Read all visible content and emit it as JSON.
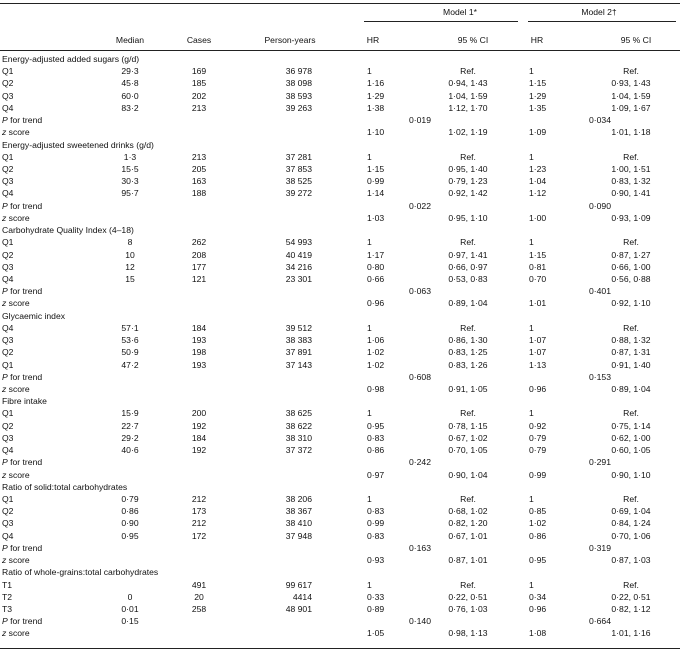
{
  "header": {
    "model1": "Model 1*",
    "model2": "Model 2†",
    "median": "Median",
    "cases": "Cases",
    "person_years": "Person-years",
    "hr1": "HR",
    "ci1": "95 % CI",
    "hr2": "HR",
    "ci2": "95 % CI"
  },
  "rows": [
    {
      "type": "section",
      "label": "Energy-adjusted added sugars (g/d)"
    },
    {
      "type": "data",
      "label": "Q1",
      "median": "29·3",
      "cases": "169",
      "py": "36 978",
      "hr1": "1",
      "ci1": "Ref.",
      "hr2": "1",
      "ci2": "Ref."
    },
    {
      "type": "data",
      "label": "Q2",
      "median": "45·8",
      "cases": "185",
      "py": "38 098",
      "hr1": "1·16",
      "ci1": "0·94, 1·43",
      "hr2": "1·15",
      "ci2": "0·93, 1·43"
    },
    {
      "type": "data",
      "label": "Q3",
      "median": "60·0",
      "cases": "202",
      "py": "38 593",
      "hr1": "1·29",
      "ci1": "1·04, 1·59",
      "hr2": "1·29",
      "ci2": "1·04, 1·59"
    },
    {
      "type": "data",
      "label": "Q4",
      "median": "83·2",
      "cases": "213",
      "py": "39 263",
      "hr1": "1·38",
      "ci1": "1·12, 1·70",
      "hr2": "1·35",
      "ci2": "1·09, 1·67"
    },
    {
      "type": "trend",
      "label_i": "P",
      "label_r": " for trend",
      "p1": "0·019",
      "p2": "0·034"
    },
    {
      "type": "z",
      "label_i": "z",
      "label_r": " score",
      "hr1": "1·10",
      "ci1": "1·02, 1·19",
      "hr2": "1·09",
      "ci2": "1·01, 1·18"
    },
    {
      "type": "section",
      "label": "Energy-adjusted sweetened drinks (g/d)"
    },
    {
      "type": "data",
      "label": "Q1",
      "median": "1·3",
      "cases": "213",
      "py": "37 281",
      "hr1": "1",
      "ci1": "Ref.",
      "hr2": "1",
      "ci2": "Ref."
    },
    {
      "type": "data",
      "label": "Q2",
      "median": "15·5",
      "cases": "205",
      "py": "37 853",
      "hr1": "1·15",
      "ci1": "0·95, 1·40",
      "hr2": "1·23",
      "ci2": "1·00, 1·51"
    },
    {
      "type": "data",
      "label": "Q3",
      "median": "30·3",
      "cases": "163",
      "py": "38 525",
      "hr1": "0·99",
      "ci1": "0·79, 1·23",
      "hr2": "1·04",
      "ci2": "0·83, 1·32"
    },
    {
      "type": "data",
      "label": "Q4",
      "median": "95·7",
      "cases": "188",
      "py": "39 272",
      "hr1": "1·14",
      "ci1": "0·92, 1·42",
      "hr2": "1·12",
      "ci2": "0·90, 1·41"
    },
    {
      "type": "trend",
      "label_i": "P",
      "label_r": " for trend",
      "p1": "0·022",
      "p2": "0·090"
    },
    {
      "type": "z",
      "label_i": "z",
      "label_r": " score",
      "hr1": "1·03",
      "ci1": "0·95, 1·10",
      "hr2": "1·00",
      "ci2": "0·93, 1·09"
    },
    {
      "type": "section",
      "label": "Carbohydrate Quality Index (4–18)"
    },
    {
      "type": "data",
      "label": "Q1",
      "median": "8",
      "cases": "262",
      "py": "54 993",
      "hr1": "1",
      "ci1": "Ref.",
      "hr2": "1",
      "ci2": "Ref."
    },
    {
      "type": "data",
      "label": "Q2",
      "median": "10",
      "cases": "208",
      "py": "40 419",
      "hr1": "1·17",
      "ci1": "0·97, 1·41",
      "hr2": "1·15",
      "ci2": "0·87, 1·27"
    },
    {
      "type": "data",
      "label": "Q3",
      "median": "12",
      "cases": "177",
      "py": "34 216",
      "hr1": "0·80",
      "ci1": "0·66, 0·97",
      "hr2": "0·81",
      "ci2": "0·66, 1·00"
    },
    {
      "type": "data",
      "label": "Q4",
      "median": "15",
      "cases": "121",
      "py": "23 301",
      "hr1": "0·66",
      "ci1": "0·53, 0·83",
      "hr2": "0·70",
      "ci2": "0·56, 0·88"
    },
    {
      "type": "trend",
      "label_i": "P",
      "label_r": " for trend",
      "p1": "0·063",
      "p2": "0·401"
    },
    {
      "type": "z",
      "label_i": "z",
      "label_r": " score",
      "hr1": "0·96",
      "ci1": "0·89, 1·04",
      "hr2": "1·01",
      "ci2": "0·92, 1·10"
    },
    {
      "type": "section",
      "label": "Glycaemic index"
    },
    {
      "type": "data",
      "label": "Q4",
      "median": "57·1",
      "cases": "184",
      "py": "39 512",
      "hr1": "1",
      "ci1": "Ref.",
      "hr2": "1",
      "ci2": "Ref."
    },
    {
      "type": "data",
      "label": "Q3",
      "median": "53·6",
      "cases": "193",
      "py": "38 383",
      "hr1": "1·06",
      "ci1": "0·86, 1·30",
      "hr2": "1·07",
      "ci2": "0·88, 1·32"
    },
    {
      "type": "data",
      "label": "Q2",
      "median": "50·9",
      "cases": "198",
      "py": "37 891",
      "hr1": "1·02",
      "ci1": "0·83, 1·25",
      "hr2": "1·07",
      "ci2": "0·87, 1·31"
    },
    {
      "type": "data",
      "label": "Q1",
      "median": "47·2",
      "cases": "193",
      "py": "37 143",
      "hr1": "1·02",
      "ci1": "0·83, 1·26",
      "hr2": "1·13",
      "ci2": "0·91, 1·40"
    },
    {
      "type": "trend",
      "label_i": "P",
      "label_r": " for trend",
      "p1": "0·608",
      "p2": "0·153"
    },
    {
      "type": "z",
      "label_i": "z",
      "label_r": " score",
      "hr1": "0·98",
      "ci1": "0·91, 1·05",
      "hr2": "0·96",
      "ci2": "0·89, 1·04"
    },
    {
      "type": "section",
      "label": "Fibre intake"
    },
    {
      "type": "data",
      "label": "Q1",
      "median": "15·9",
      "cases": "200",
      "py": "38 625",
      "hr1": "1",
      "ci1": "Ref.",
      "hr2": "1",
      "ci2": "Ref."
    },
    {
      "type": "data",
      "label": "Q2",
      "median": "22·7",
      "cases": "192",
      "py": "38 622",
      "hr1": "0·95",
      "ci1": "0·78, 1·15",
      "hr2": "0·92",
      "ci2": "0·75, 1·14"
    },
    {
      "type": "data",
      "label": "Q3",
      "median": "29·2",
      "cases": "184",
      "py": "38 310",
      "hr1": "0·83",
      "ci1": "0·67, 1·02",
      "hr2": "0·79",
      "ci2": "0·62, 1·00"
    },
    {
      "type": "data",
      "label": "Q4",
      "median": "40·6",
      "cases": "192",
      "py": "37 372",
      "hr1": "0·86",
      "ci1": "0·70, 1·05",
      "hr2": "0·79",
      "ci2": "0·60, 1·05"
    },
    {
      "type": "trend",
      "label_i": "P",
      "label_r": " for trend",
      "p1": "0·242",
      "p2": "0·291"
    },
    {
      "type": "z",
      "label_i": "z",
      "label_r": " score",
      "hr1": "0·97",
      "ci1": "0·90, 1·04",
      "hr2": "0·99",
      "ci2": "0·90, 1·10"
    },
    {
      "type": "section",
      "label": "Ratio of solid:total carbohydrates"
    },
    {
      "type": "data",
      "label": "Q1",
      "median": "0·79",
      "cases": "212",
      "py": "38 206",
      "hr1": "1",
      "ci1": "Ref.",
      "hr2": "1",
      "ci2": "Ref."
    },
    {
      "type": "data",
      "label": "Q2",
      "median": "0·86",
      "cases": "173",
      "py": "38 367",
      "hr1": "0·83",
      "ci1": "0·68, 1·02",
      "hr2": "0·85",
      "ci2": "0·69, 1·04"
    },
    {
      "type": "data",
      "label": "Q3",
      "median": "0·90",
      "cases": "212",
      "py": "38 410",
      "hr1": "0·99",
      "ci1": "0·82, 1·20",
      "hr2": "1·02",
      "ci2": "0·84, 1·24"
    },
    {
      "type": "data",
      "label": "Q4",
      "median": "0·95",
      "cases": "172",
      "py": "37 948",
      "hr1": "0·83",
      "ci1": "0·67, 1·01",
      "hr2": "0·86",
      "ci2": "0·70, 1·06"
    },
    {
      "type": "trend",
      "label_i": "P",
      "label_r": " for trend",
      "p1": "0·163",
      "p2": "0·319"
    },
    {
      "type": "z",
      "label_i": "z",
      "label_r": " score",
      "hr1": "0·93",
      "ci1": "0·87, 1·01",
      "hr2": "0·95",
      "ci2": "0·87, 1·03"
    },
    {
      "type": "section",
      "label": "Ratio of whole-grains:total carbohydrates"
    },
    {
      "type": "data",
      "label": "T1",
      "median": "",
      "cases": "491",
      "py": "99 617",
      "hr1": "1",
      "ci1": "Ref.",
      "hr2": "1",
      "ci2": "Ref."
    },
    {
      "type": "data",
      "label": "T2",
      "median": "0",
      "cases": "20",
      "py": "4414",
      "hr1": "0·33",
      "ci1": "0·22, 0·51",
      "hr2": "0·34",
      "ci2": "0·22, 0·51"
    },
    {
      "type": "data",
      "label": "T3",
      "median": "0·01",
      "cases": "258",
      "py": "48 901",
      "hr1": "0·89",
      "ci1": "0·76, 1·03",
      "hr2": "0·96",
      "ci2": "0·82, 1·12"
    },
    {
      "type": "trend",
      "label_i": "P",
      "label_r": " for trend",
      "median": "0·15",
      "p1": "0·140",
      "p2": "0·664"
    },
    {
      "type": "z",
      "label_i": "z",
      "label_r": " score",
      "hr1": "1·05",
      "ci1": "0·98, 1·13",
      "hr2": "1·08",
      "ci2": "1·01, 1·16"
    }
  ]
}
